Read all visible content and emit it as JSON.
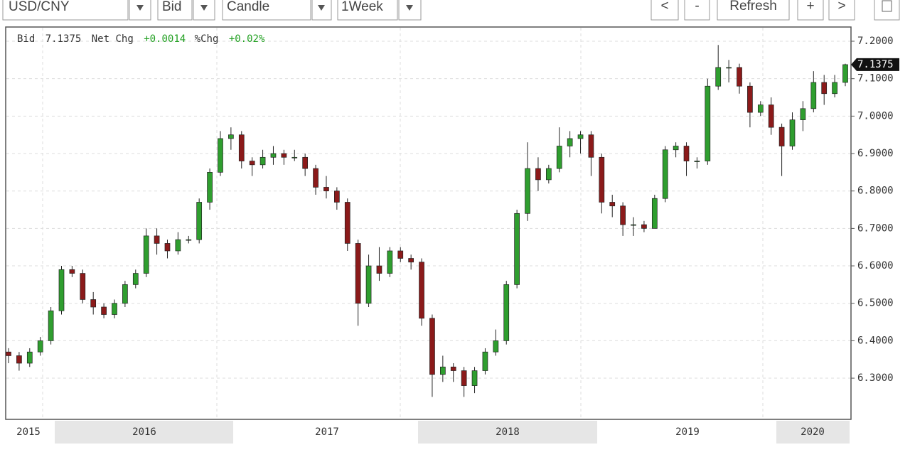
{
  "toolbar": {
    "symbol": "USD/CNY",
    "quote": "Bid",
    "chart_style": "Candle",
    "interval": "1Week",
    "buttons": [
      "<",
      "-",
      "Refresh",
      "+",
      ">"
    ]
  },
  "header": {
    "bid_label": "Bid",
    "net_chg_label": "Net Chg",
    "net_chg": "+0.0014",
    "pct_chg_label": "%Chg",
    "pct_chg": "+0.02%"
  },
  "chart_data": {
    "type": "candlestick",
    "x_labels": [
      "2015",
      "2016",
      "2017",
      "2018",
      "2019",
      "2020"
    ],
    "ylim": [
      6.19,
      7.238
    ],
    "yticks": [
      {
        "value": 7.2,
        "label": "7.2000"
      },
      {
        "value": 7.1,
        "label": "7.1000"
      },
      {
        "value": 7.0,
        "label": "7.0000"
      },
      {
        "value": 6.9,
        "label": "6.9000"
      },
      {
        "value": 6.8,
        "label": "6.8000"
      },
      {
        "value": 6.7,
        "label": "6.7000"
      },
      {
        "value": 6.6,
        "label": "6.6000"
      },
      {
        "value": 6.5,
        "label": "6.5000"
      },
      {
        "value": 6.4,
        "label": "6.4000"
      },
      {
        "value": 6.3,
        "label": "6.3000"
      }
    ],
    "grid": true,
    "up_color": "#2f9e2f",
    "down_color": "#8b1a1a",
    "candles": {
      "open": [
        6.37,
        6.36,
        6.34,
        6.37,
        6.4,
        6.48,
        6.59,
        6.58,
        6.51,
        6.49,
        6.47,
        6.5,
        6.55,
        6.58,
        6.68,
        6.66,
        6.64,
        6.67,
        6.67,
        6.77,
        6.85,
        6.94,
        6.95,
        6.88,
        6.87,
        6.89,
        6.9,
        6.89,
        6.89,
        6.86,
        6.81,
        6.8,
        6.77,
        6.66,
        6.5,
        6.6,
        6.58,
        6.64,
        6.62,
        6.61,
        6.46,
        6.31,
        6.33,
        6.32,
        6.28,
        6.32,
        6.37,
        6.4,
        6.55,
        6.74,
        6.86,
        6.83,
        6.86,
        6.92,
        6.94,
        6.95,
        6.89,
        6.77,
        6.76,
        6.71,
        6.71,
        6.7,
        6.78,
        6.91,
        6.92,
        6.88,
        6.88,
        7.08,
        7.13,
        7.13,
        7.08,
        7.01,
        7.03,
        6.97,
        6.92,
        6.99,
        7.02,
        7.09,
        7.06,
        7.09
      ],
      "high": [
        6.38,
        6.37,
        6.38,
        6.41,
        6.49,
        6.6,
        6.6,
        6.59,
        6.53,
        6.5,
        6.51,
        6.56,
        6.59,
        6.7,
        6.7,
        6.67,
        6.69,
        6.68,
        6.78,
        6.86,
        6.96,
        6.97,
        6.96,
        6.89,
        6.91,
        6.92,
        6.91,
        6.91,
        6.9,
        6.87,
        6.84,
        6.81,
        6.78,
        6.67,
        6.63,
        6.65,
        6.65,
        6.65,
        6.63,
        6.62,
        6.47,
        6.36,
        6.34,
        6.33,
        6.33,
        6.38,
        6.43,
        6.56,
        6.75,
        6.93,
        6.89,
        6.87,
        6.97,
        6.96,
        6.96,
        6.96,
        6.9,
        6.79,
        6.77,
        6.73,
        6.72,
        6.79,
        6.92,
        6.93,
        6.93,
        6.89,
        7.1,
        7.19,
        7.15,
        7.14,
        7.09,
        7.04,
        7.05,
        6.98,
        7.01,
        7.04,
        7.12,
        7.11,
        7.11,
        7.14
      ],
      "low": [
        6.34,
        6.32,
        6.33,
        6.36,
        6.39,
        6.47,
        6.57,
        6.5,
        6.47,
        6.46,
        6.46,
        6.49,
        6.54,
        6.57,
        6.63,
        6.62,
        6.63,
        6.66,
        6.66,
        6.75,
        6.84,
        6.91,
        6.86,
        6.84,
        6.86,
        6.87,
        6.87,
        6.88,
        6.84,
        6.79,
        6.78,
        6.75,
        6.64,
        6.44,
        6.49,
        6.56,
        6.57,
        6.61,
        6.59,
        6.44,
        6.25,
        6.29,
        6.29,
        6.25,
        6.26,
        6.31,
        6.36,
        6.39,
        6.54,
        6.72,
        6.8,
        6.82,
        6.85,
        6.89,
        6.9,
        6.84,
        6.74,
        6.73,
        6.68,
        6.68,
        6.69,
        6.7,
        6.77,
        6.89,
        6.84,
        6.86,
        6.87,
        7.07,
        7.09,
        7.06,
        6.97,
        7.0,
        6.95,
        6.84,
        6.91,
        6.96,
        7.01,
        7.03,
        7.05,
        7.08
      ],
      "close": [
        6.36,
        6.34,
        6.37,
        6.4,
        6.48,
        6.59,
        6.58,
        6.51,
        6.49,
        6.47,
        6.5,
        6.55,
        6.58,
        6.68,
        6.66,
        6.64,
        6.67,
        6.67,
        6.77,
        6.85,
        6.94,
        6.95,
        6.88,
        6.87,
        6.89,
        6.9,
        6.89,
        6.89,
        6.86,
        6.81,
        6.8,
        6.77,
        6.66,
        6.5,
        6.6,
        6.58,
        6.64,
        6.62,
        6.61,
        6.46,
        6.31,
        6.33,
        6.32,
        6.28,
        6.32,
        6.37,
        6.4,
        6.55,
        6.74,
        6.86,
        6.83,
        6.86,
        6.92,
        6.94,
        6.95,
        6.89,
        6.77,
        6.76,
        6.71,
        6.71,
        6.7,
        6.78,
        6.91,
        6.92,
        6.88,
        6.88,
        7.08,
        7.13,
        7.13,
        7.08,
        7.01,
        7.03,
        6.97,
        6.92,
        6.99,
        7.02,
        7.09,
        7.06,
        7.09,
        7.1375
      ]
    }
  }
}
